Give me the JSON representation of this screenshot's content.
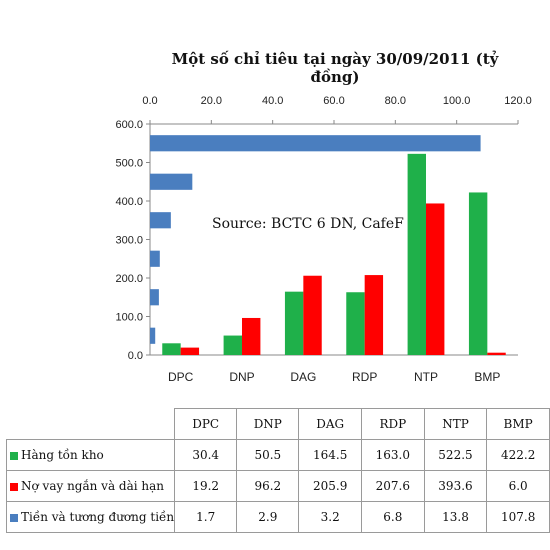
{
  "chart_data": {
    "type": "bar",
    "title": "Một số chỉ tiêu tại ngày 30/09/2011 (tỷ đồng)",
    "annotation": "Source: BCTC 6 DN, CafeF",
    "categories": [
      "DPC",
      "DNP",
      "DAG",
      "RDP",
      "NTP",
      "BMP"
    ],
    "series": [
      {
        "name": "Hàng tồn kho",
        "values": [
          30.4,
          50.5,
          164.5,
          163.0,
          522.5,
          422.2
        ],
        "color": "#1fb04a",
        "orientation": "vertical",
        "axis": "left"
      },
      {
        "name": "Nợ vay ngắn và dài hạn",
        "values": [
          19.2,
          96.2,
          205.9,
          207.6,
          393.6,
          6.0
        ],
        "color": "#ff0000",
        "orientation": "vertical",
        "axis": "left"
      },
      {
        "name": "Tiền và tương đương tiền",
        "values": [
          1.7,
          2.9,
          3.2,
          6.8,
          13.8,
          107.8
        ],
        "color": "#4a7ebf",
        "orientation": "horizontal",
        "axis": "top"
      }
    ],
    "y_axis": {
      "range": [
        0,
        600
      ],
      "ticks": [
        "0.0",
        "100.0",
        "200.0",
        "300.0",
        "400.0",
        "500.0",
        "600.0"
      ]
    },
    "top_axis": {
      "range": [
        0,
        120
      ],
      "ticks": [
        "0.0",
        "20.0",
        "40.0",
        "60.0",
        "80.0",
        "100.0",
        "120.0"
      ]
    },
    "grid": false,
    "legend": "table-below"
  },
  "table": {
    "headers": [
      "DPC",
      "DNP",
      "DAG",
      "RDP",
      "NTP",
      "BMP"
    ],
    "rows": [
      {
        "label": "Hàng tồn kho",
        "values": [
          "30.4",
          "50.5",
          "164.5",
          "163.0",
          "522.5",
          "422.2"
        ]
      },
      {
        "label": "Nợ vay ngắn và dài hạn",
        "values": [
          "19.2",
          "96.2",
          "205.9",
          "207.6",
          "393.6",
          "6.0"
        ]
      },
      {
        "label": "Tiền và tương đương tiền",
        "values": [
          "1.7",
          "2.9",
          "3.2",
          "6.8",
          "13.8",
          "107.8"
        ]
      }
    ]
  }
}
